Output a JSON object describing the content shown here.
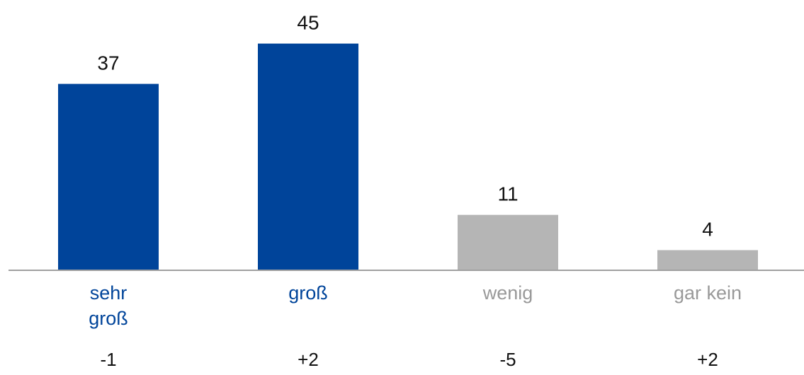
{
  "chart_data": {
    "type": "bar",
    "categories": [
      "sehr groß",
      "groß",
      "wenig",
      "gar kein"
    ],
    "values": [
      37,
      45,
      11,
      4
    ],
    "colors": [
      "#00449a",
      "#00449a",
      "#b5b5b5",
      "#b5b5b5"
    ],
    "label_colors": [
      "#00449a",
      "#00449a",
      "#999999",
      "#999999"
    ],
    "annotations": [
      "-1",
      "+2",
      "-5",
      "+2"
    ],
    "ylim": [
      0,
      50
    ]
  }
}
